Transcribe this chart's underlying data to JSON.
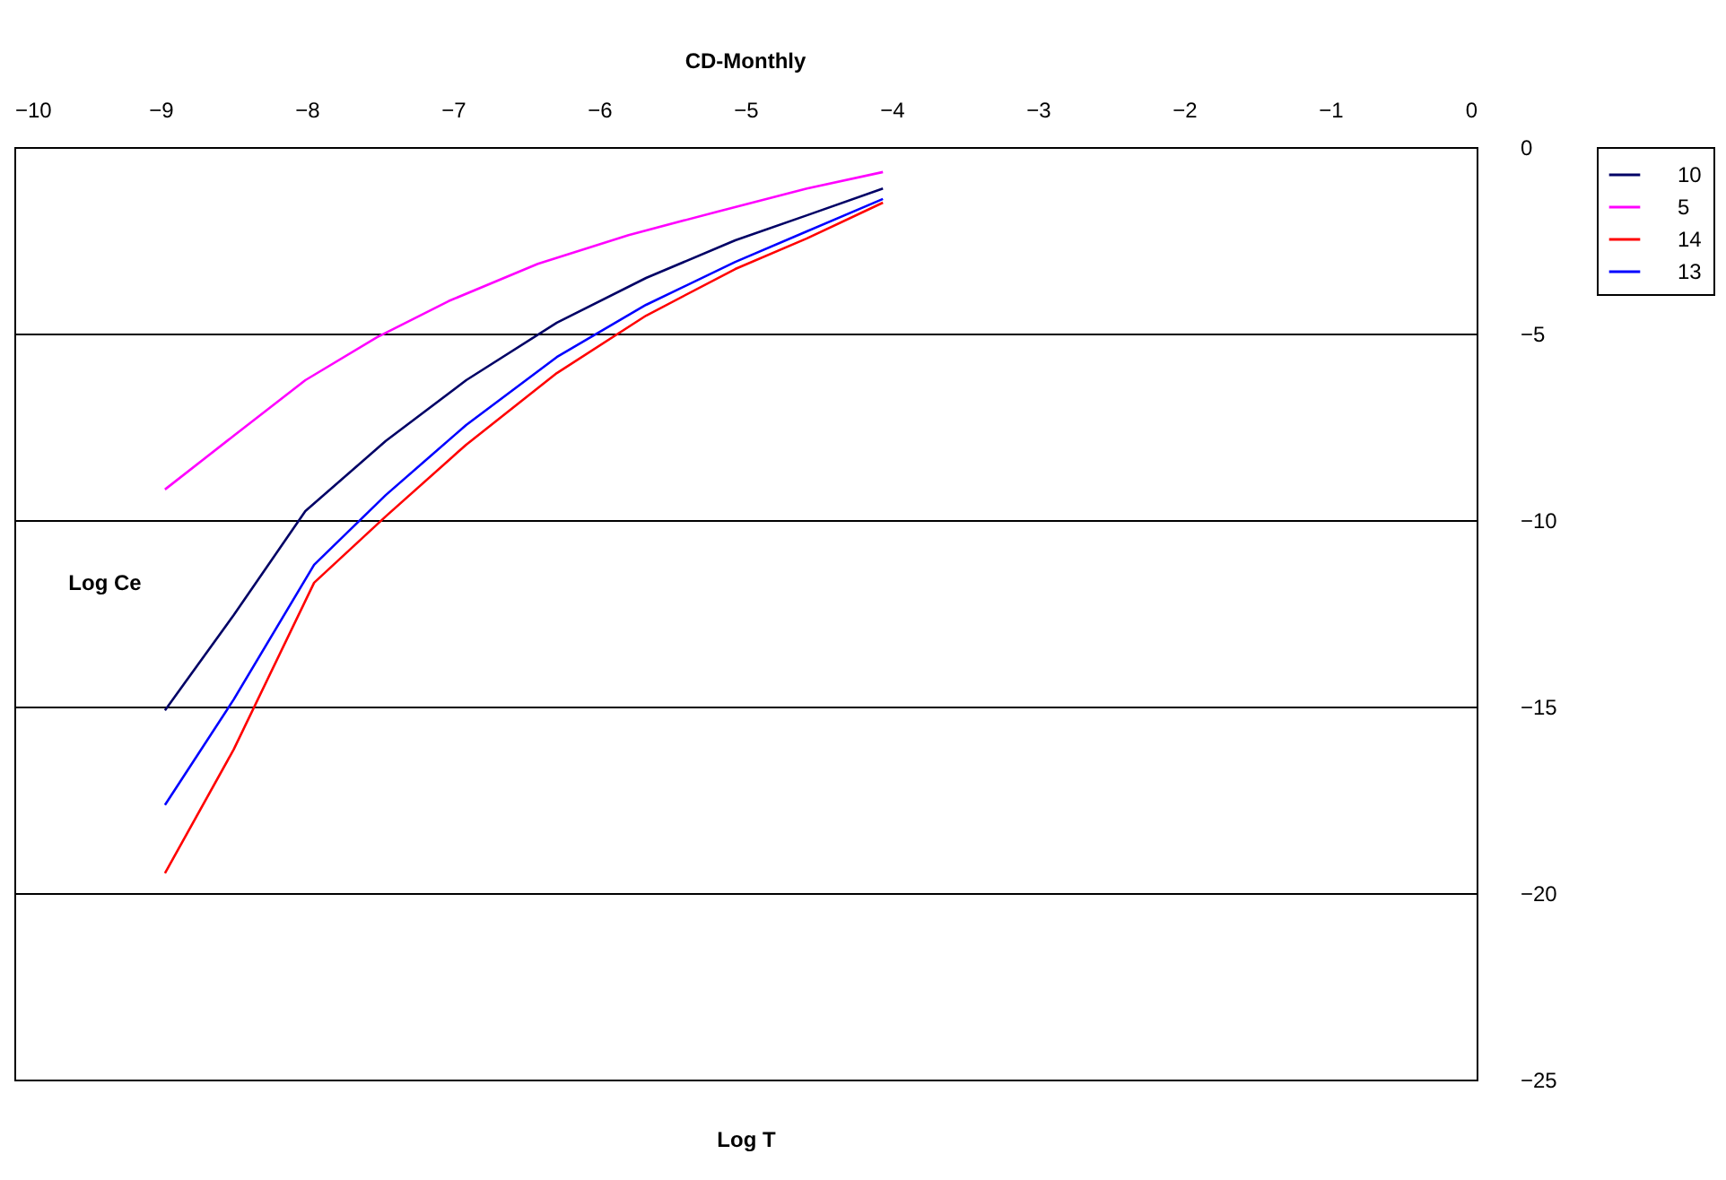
{
  "chart_data": {
    "type": "line",
    "title": "CD-Monthly",
    "xlabel": "Log T",
    "ylabel": "Log Ce",
    "xlim": [
      -10,
      0
    ],
    "xticks": [
      -10,
      -9,
      -8,
      -7,
      -6,
      -5,
      -4,
      -3,
      -2,
      -1,
      0
    ],
    "ylim": [
      -25,
      0
    ],
    "yticks": [
      -25,
      -20,
      -15,
      -10,
      -5,
      0
    ],
    "grid": "y",
    "legend": "right",
    "line_style": "solid",
    "marker": "none",
    "series": [
      {
        "name": "10",
        "color": "#000066",
        "x": [
          -8.97,
          -8.5,
          -8.01,
          -7.46,
          -6.91,
          -6.29,
          -5.68,
          -5.07,
          -4.58,
          -4.06
        ],
        "values": [
          -15.1,
          -12.55,
          -9.76,
          -7.88,
          -6.25,
          -4.71,
          -3.51,
          -2.5,
          -1.83,
          -1.11
        ]
      },
      {
        "name": "5",
        "color": "#ff00ff",
        "x": [
          -8.97,
          -8.5,
          -8.01,
          -7.52,
          -7.03,
          -6.42,
          -5.8,
          -5.19,
          -4.58,
          -4.06
        ],
        "values": [
          -9.18,
          -7.74,
          -6.25,
          -5.1,
          -4.13,
          -3.13,
          -2.36,
          -1.73,
          -1.11,
          -0.67
        ]
      },
      {
        "name": "14",
        "color": "#ff0000",
        "x": [
          -8.97,
          -8.5,
          -7.95,
          -7.46,
          -6.91,
          -6.29,
          -5.68,
          -5.07,
          -4.58,
          -4.06
        ],
        "values": [
          -19.47,
          -16.15,
          -11.68,
          -9.9,
          -7.98,
          -6.06,
          -4.52,
          -3.27,
          -2.45,
          -1.49
        ]
      },
      {
        "name": "13",
        "color": "#0000ff",
        "x": [
          -8.97,
          -8.5,
          -7.95,
          -7.46,
          -6.91,
          -6.29,
          -5.68,
          -5.07,
          -4.58,
          -4.06
        ],
        "values": [
          -17.64,
          -14.81,
          -11.2,
          -9.33,
          -7.45,
          -5.63,
          -4.23,
          -3.08,
          -2.26,
          -1.39
        ]
      }
    ]
  }
}
